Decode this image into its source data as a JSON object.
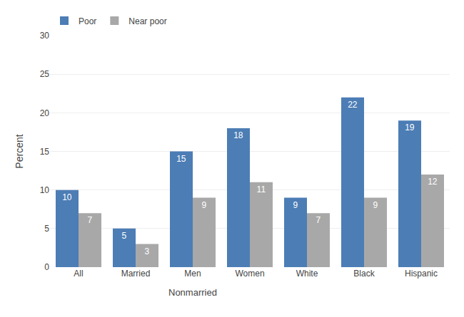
{
  "chart_data": {
    "type": "bar",
    "categories": [
      "All",
      "Married",
      "Men",
      "Women",
      "White",
      "Black",
      "Hispanic"
    ],
    "series": [
      {
        "name": "Poor",
        "color": "#4C7DB5",
        "values": [
          10,
          5,
          15,
          18,
          9,
          22,
          19
        ]
      },
      {
        "name": "Near poor",
        "color": "#A8A8A8",
        "values": [
          7,
          3,
          9,
          11,
          7,
          9,
          12
        ]
      }
    ],
    "ylabel": "Percent",
    "ylim": [
      0,
      30
    ],
    "yticks": [
      0,
      5,
      10,
      15,
      20,
      25,
      30
    ],
    "grid": true,
    "legend": "upper left",
    "data_labels": true,
    "annotations": [
      {
        "text": "Nonmarried",
        "x": "Men"
      }
    ]
  }
}
